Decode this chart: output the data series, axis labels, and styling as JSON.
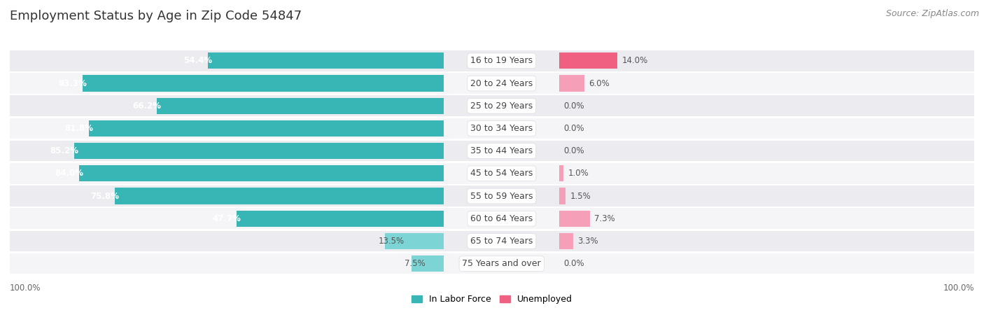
{
  "title": "Employment Status by Age in Zip Code 54847",
  "source": "Source: ZipAtlas.com",
  "categories": [
    "16 to 19 Years",
    "20 to 24 Years",
    "25 to 29 Years",
    "30 to 34 Years",
    "35 to 44 Years",
    "45 to 54 Years",
    "55 to 59 Years",
    "60 to 64 Years",
    "65 to 74 Years",
    "75 Years and over"
  ],
  "labor_force": [
    54.4,
    83.3,
    66.2,
    81.8,
    85.2,
    84.0,
    75.8,
    47.7,
    13.5,
    7.5
  ],
  "unemployed": [
    14.0,
    6.0,
    0.0,
    0.0,
    0.0,
    1.0,
    1.5,
    7.3,
    3.3,
    0.0
  ],
  "labor_force_color_dark": "#38B5B5",
  "labor_force_color_light": "#7DD4D4",
  "unemployed_color_dark": "#F06080",
  "unemployed_color_light": "#F5A0B8",
  "row_bg_odd": "#EBEBF0",
  "row_bg_even": "#F5F5F8",
  "title_fontsize": 13,
  "source_fontsize": 9,
  "label_fontsize": 8.5,
  "cat_fontsize": 9,
  "axis_max": 100,
  "legend_labor": "In Labor Force",
  "legend_unemployed": "Unemployed"
}
